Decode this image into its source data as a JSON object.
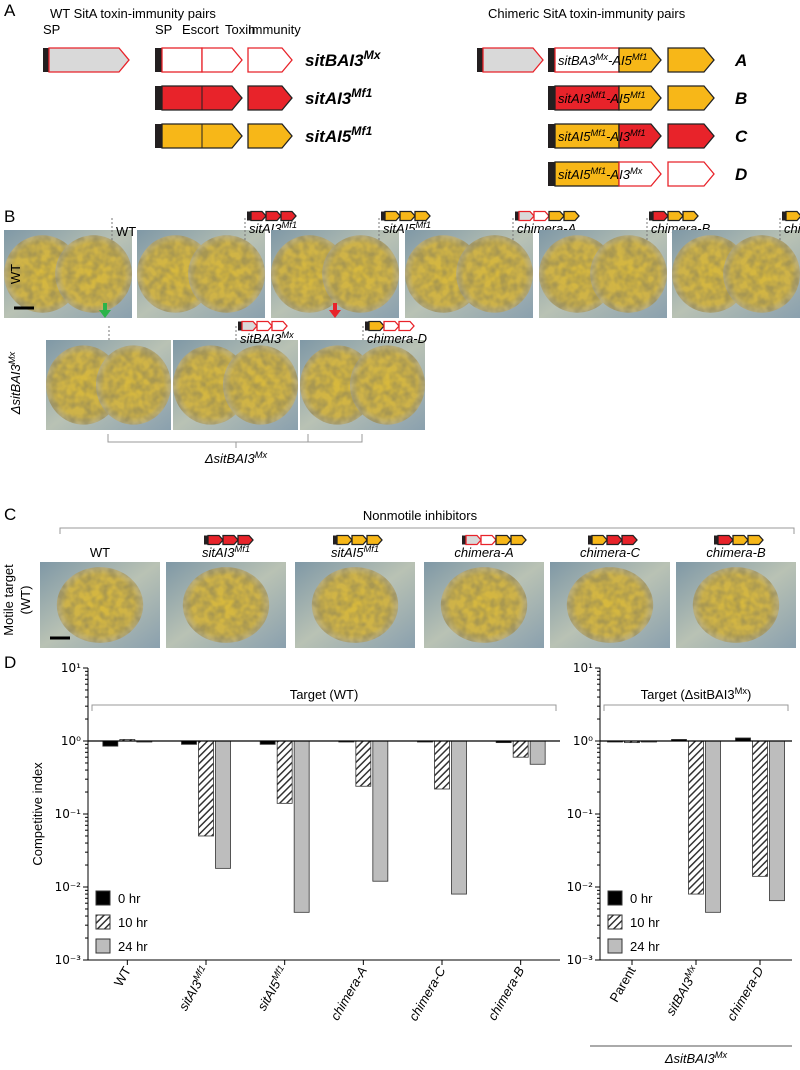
{
  "panel_a": {
    "label": "A",
    "wt_title": "WT SitA toxin-immunity pairs",
    "chim_title": "Chimeric SitA toxin-immunity pairs",
    "domains": [
      "SP",
      "SP",
      "Escort",
      "Toxin",
      "Immunity"
    ],
    "wt_genes": [
      [
        "sitBAI3",
        "Mx"
      ],
      [
        "sitAI3",
        "Mf1"
      ],
      [
        "sitAI5",
        "Mf1"
      ]
    ],
    "chimeras": [
      {
        "parts": [
          "sitBA3",
          "Mx",
          "-AI5",
          "Mf1"
        ],
        "letter": "A"
      },
      {
        "parts": [
          "sitAI3",
          "Mf1",
          "-AI5",
          "Mf1"
        ],
        "letter": "B"
      },
      {
        "parts": [
          "sitAI5",
          "Mf1",
          "-AI3",
          "Mf1"
        ],
        "letter": "C"
      },
      {
        "parts": [
          "sitAI5",
          "Mf1",
          "-AI3",
          "Mx"
        ],
        "letter": "D"
      }
    ]
  },
  "panel_b": {
    "label": "B",
    "row_labels": [
      "WT",
      [
        "ΔsitBAI3",
        "Mx"
      ]
    ],
    "row1": [
      "WT",
      [
        "sitAI3",
        "Mf1"
      ],
      [
        "sitAI5",
        "Mf1"
      ],
      "chimera-A",
      "chimera-B",
      "chimera-C"
    ],
    "row2": [
      [
        "sitBAI3",
        "Mx"
      ],
      "chimera-D"
    ],
    "bracket": [
      "ΔsitBAI3",
      "Mx"
    ]
  },
  "panel_c": {
    "label": "C",
    "title": "Nonmotile inhibitors",
    "row_label": [
      "Motile target",
      "(WT)"
    ],
    "labels": [
      "WT",
      [
        "sitAI3",
        "Mf1"
      ],
      [
        "sitAI5",
        "Mf1"
      ],
      "chimera-A",
      "chimera-C",
      "chimera-B"
    ]
  },
  "panel_d": {
    "label": "D"
  },
  "chart_data": [
    {
      "type": "bar",
      "title": "Target (WT)",
      "y_label": "Competitive index",
      "yscale": "log",
      "ylim": [
        0.001,
        10
      ],
      "yticks": [
        {
          "value": 10,
          "label": "10¹"
        },
        {
          "value": 1,
          "label": "10⁰"
        },
        {
          "value": 0.1,
          "label": "10⁻¹"
        },
        {
          "value": 0.01,
          "label": "10⁻²"
        },
        {
          "value": 0.001,
          "label": "10⁻³"
        }
      ],
      "reference_line": 1,
      "categories": [
        [
          "WT"
        ],
        [
          "sitAI3",
          "Mf1"
        ],
        [
          "sitAI5",
          "Mf1"
        ],
        [
          "chimera-A"
        ],
        [
          "chimera-C"
        ],
        [
          "chimera-B"
        ]
      ],
      "series": [
        {
          "name": "0 hr",
          "color": "#000000",
          "values": [
            0.85,
            0.9,
            0.9,
            1.0,
            1.0,
            0.95
          ]
        },
        {
          "name": "10 hr",
          "color": "#555555",
          "hatch": true,
          "values": [
            1.05,
            0.05,
            0.14,
            0.24,
            0.22,
            0.6
          ]
        },
        {
          "name": "24 hr",
          "color": "#bdbdbd",
          "values": [
            1.0,
            0.018,
            0.0045,
            0.012,
            0.008,
            0.48
          ]
        }
      ]
    },
    {
      "type": "bar",
      "title": [
        "Target (ΔsitBAI3",
        "Mx",
        ")"
      ],
      "yscale": "log",
      "ylim": [
        0.001,
        10
      ],
      "yticks": [
        {
          "value": 10,
          "label": "10¹"
        },
        {
          "value": 1,
          "label": "10⁰"
        },
        {
          "value": 0.1,
          "label": "10⁻¹"
        },
        {
          "value": 0.01,
          "label": "10⁻²"
        },
        {
          "value": 0.001,
          "label": "10⁻³"
        }
      ],
      "reference_line": 1,
      "categories": [
        [
          "Parent"
        ],
        [
          "sitBAI3",
          "Mx"
        ],
        [
          "chimera-D"
        ]
      ],
      "group_label": [
        "ΔsitBAI3",
        "Mx"
      ],
      "series": [
        {
          "name": "0 hr",
          "color": "#000000",
          "values": [
            1.0,
            1.05,
            1.1
          ]
        },
        {
          "name": "10 hr",
          "color": "#555555",
          "hatch": true,
          "values": [
            0.95,
            0.008,
            0.014
          ]
        },
        {
          "name": "24 hr",
          "color": "#bdbdbd",
          "values": [
            1.0,
            0.0045,
            0.0065
          ]
        }
      ]
    }
  ]
}
